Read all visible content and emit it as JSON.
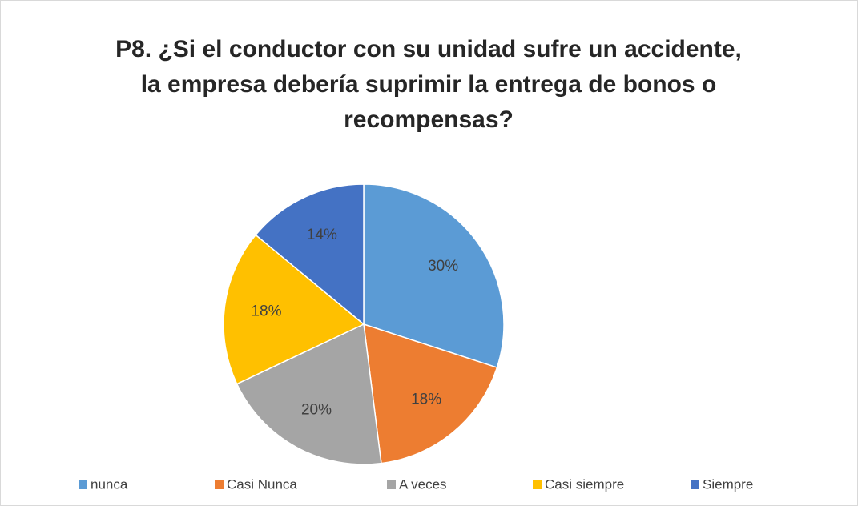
{
  "chart_data": {
    "type": "pie",
    "title": [
      "P8. ¿Si el conductor con su unidad sufre un accidente,",
      "la empresa debería suprimir la entrega de bonos o",
      "recompensas?"
    ],
    "categories": [
      "nunca",
      "Casi Nunca",
      "A veces",
      "Casi siempre",
      "Siempre"
    ],
    "values": [
      30,
      18,
      20,
      18,
      14
    ],
    "value_labels": [
      "30%",
      "18%",
      "20%",
      "18%",
      "14%"
    ],
    "colors": [
      "#5b9bd5",
      "#ed7d31",
      "#a5a5a5",
      "#ffc000",
      "#4472c4"
    ],
    "legend": "bottom"
  }
}
